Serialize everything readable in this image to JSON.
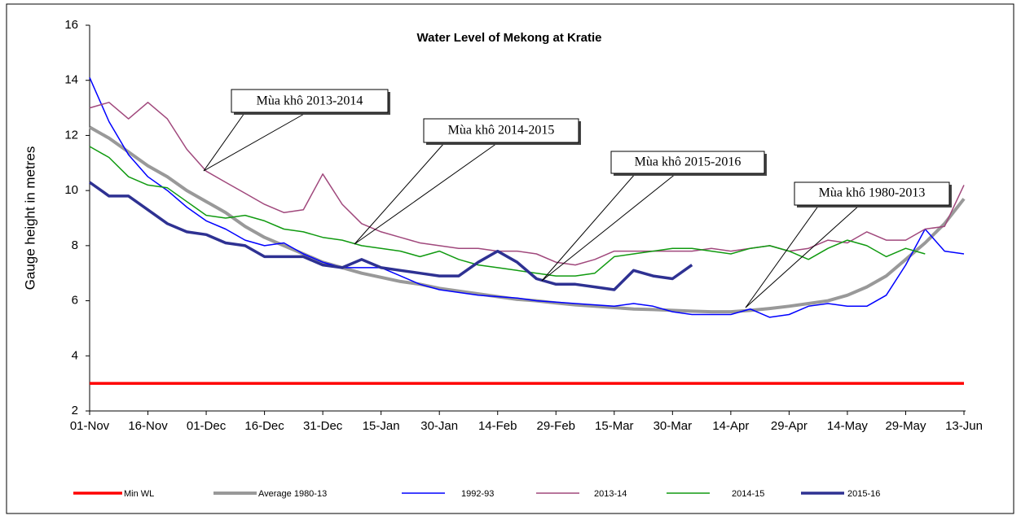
{
  "chart_data": {
    "type": "line",
    "title": "Water Level of Mekong at Kratie",
    "y_label": "Gauge height in metres",
    "categories": [
      "01-Nov",
      null,
      null,
      "16-Nov",
      null,
      null,
      "01-Dec",
      null,
      null,
      "16-Dec",
      null,
      null,
      "31-Dec",
      null,
      null,
      "15-Jan",
      null,
      null,
      "30-Jan",
      null,
      null,
      "14-Feb",
      null,
      null,
      "29-Feb",
      null,
      null,
      "15-Mar",
      null,
      null,
      "30-Mar",
      null,
      null,
      "14-Apr",
      null,
      null,
      "29-Apr",
      null,
      null,
      "14-May",
      null,
      null,
      "29-May",
      null,
      null,
      "13-Jun"
    ],
    "ylim": [
      2,
      16
    ],
    "yticks": [
      2,
      4,
      6,
      8,
      10,
      12,
      14,
      16
    ],
    "legend": "bottom",
    "series": [
      {
        "name": "Min WL",
        "color": "#ff0000",
        "width": 3.5,
        "values": [
          3,
          3,
          3,
          3,
          3,
          3,
          3,
          3,
          3,
          3,
          3,
          3,
          3,
          3,
          3,
          3,
          3,
          3,
          3,
          3,
          3,
          3,
          3,
          3,
          3,
          3,
          3,
          3,
          3,
          3,
          3,
          3,
          3,
          3,
          3,
          3,
          3,
          3,
          3,
          3,
          3,
          3,
          3,
          3,
          3,
          3
        ]
      },
      {
        "name": "Average 1980-13",
        "color": "#999999",
        "width": 4,
        "values": [
          12.3,
          11.9,
          11.4,
          10.9,
          10.5,
          10.0,
          9.6,
          9.2,
          8.7,
          8.3,
          8.0,
          7.7,
          7.4,
          7.2,
          7.0,
          6.85,
          6.7,
          6.6,
          6.45,
          6.35,
          6.25,
          6.15,
          6.05,
          6.0,
          5.92,
          5.85,
          5.8,
          5.75,
          5.7,
          5.68,
          5.65,
          5.62,
          5.6,
          5.6,
          5.65,
          5.72,
          5.8,
          5.9,
          6.0,
          6.2,
          6.5,
          6.9,
          7.5,
          8.1,
          8.8,
          9.7
        ]
      },
      {
        "name": "1992-93",
        "color": "#0000ff",
        "width": 1.5,
        "values": [
          14.1,
          12.5,
          11.3,
          10.5,
          10.0,
          9.4,
          8.9,
          8.6,
          8.2,
          8.0,
          8.1,
          7.7,
          7.4,
          7.2,
          7.2,
          7.2,
          6.9,
          6.6,
          6.4,
          6.3,
          6.2,
          6.15,
          6.1,
          6.0,
          5.95,
          5.9,
          5.85,
          5.8,
          5.9,
          5.8,
          5.6,
          5.5,
          5.5,
          5.5,
          5.7,
          5.4,
          5.5,
          5.8,
          5.9,
          5.8,
          5.8,
          6.2,
          7.3,
          8.6,
          7.8,
          7.7
        ]
      },
      {
        "name": "2013-14",
        "color": "#a0487c",
        "width": 1.5,
        "values": [
          13.0,
          13.2,
          12.6,
          13.2,
          12.6,
          11.5,
          10.7,
          10.3,
          9.9,
          9.5,
          9.2,
          9.3,
          10.6,
          9.5,
          8.8,
          8.5,
          8.3,
          8.1,
          8.0,
          7.9,
          7.9,
          7.8,
          7.8,
          7.7,
          7.4,
          7.3,
          7.5,
          7.8,
          7.8,
          7.8,
          7.8,
          7.8,
          7.9,
          7.8,
          7.9,
          8.0,
          7.8,
          7.9,
          8.2,
          8.1,
          8.5,
          8.2,
          8.2,
          8.6,
          8.7,
          10.2
        ]
      },
      {
        "name": "2014-15",
        "color": "#109a10",
        "width": 1.5,
        "values": [
          11.6,
          11.2,
          10.5,
          10.2,
          10.1,
          9.6,
          9.1,
          9.0,
          9.1,
          8.9,
          8.6,
          8.5,
          8.3,
          8.2,
          8.0,
          7.9,
          7.8,
          7.6,
          7.8,
          7.5,
          7.3,
          7.2,
          7.1,
          7.0,
          6.9,
          6.9,
          7.0,
          7.6,
          7.7,
          7.8,
          7.9,
          7.9,
          7.8,
          7.7,
          7.9,
          8.0,
          7.8,
          7.5,
          7.9,
          8.2,
          8.0,
          7.6,
          7.9,
          7.7,
          null,
          null
        ]
      },
      {
        "name": "2015-16",
        "color": "#2e3192",
        "width": 3.5,
        "values": [
          10.3,
          9.8,
          9.8,
          9.3,
          8.8,
          8.5,
          8.4,
          8.1,
          8.0,
          7.6,
          7.6,
          7.6,
          7.3,
          7.2,
          7.5,
          7.2,
          7.1,
          7.0,
          6.9,
          6.9,
          7.4,
          7.8,
          7.4,
          6.8,
          6.6,
          6.6,
          6.5,
          6.4,
          7.1,
          6.9,
          6.8,
          7.3,
          null,
          null,
          null,
          null,
          null,
          null,
          null,
          null,
          null,
          null,
          null,
          null,
          null,
          null
        ]
      }
    ],
    "annotations": [
      "Mùa khô 2013-2014",
      "Mùa khô 2014-2015",
      "Mùa khô 2015-2016",
      "Mùa khô 1980-2013"
    ]
  }
}
